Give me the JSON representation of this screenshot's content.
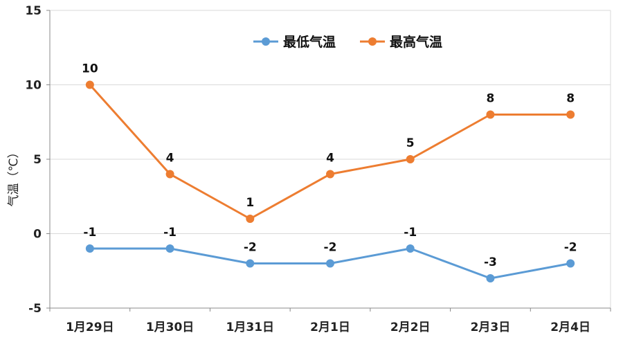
{
  "chart_data": {
    "type": "line",
    "categories": [
      "1月29日",
      "1月30日",
      "1月31日",
      "2月1日",
      "2月2日",
      "2月3日",
      "2月4日"
    ],
    "series": [
      {
        "name": "最低气温",
        "values": [
          -1,
          -1,
          -2,
          -2,
          -1,
          -3,
          -2
        ],
        "color": "#5b9bd5",
        "data_labels": [
          "-1",
          "-1",
          "-2",
          "-2",
          "-1",
          "-3",
          "-2"
        ]
      },
      {
        "name": "最高气温",
        "values": [
          10,
          4,
          1,
          4,
          5,
          8,
          8
        ],
        "color": "#ed7d31",
        "data_labels": [
          "10",
          "4",
          "1",
          "4",
          "5",
          "8",
          "8"
        ]
      }
    ],
    "ylabel": "气温（℃）",
    "xlabel": "",
    "title": "",
    "ylim": [
      -5,
      15
    ],
    "yticks": [
      -5,
      0,
      5,
      10,
      15
    ],
    "ytick_labels": [
      "-5",
      "0",
      "5",
      "10",
      "15"
    ],
    "grid": true,
    "legend_position": "top"
  }
}
